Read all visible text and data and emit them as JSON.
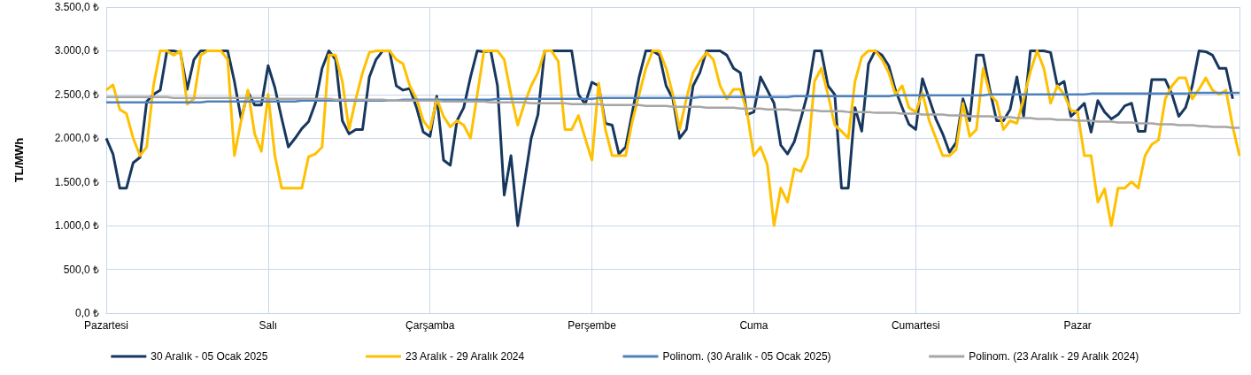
{
  "chart_data": {
    "type": "line",
    "ylabel": "TL/MWh",
    "categories": [
      "Pazartesi",
      null,
      null,
      null,
      null,
      null,
      null,
      null,
      null,
      null,
      null,
      null,
      null,
      null,
      null,
      null,
      null,
      null,
      null,
      null,
      null,
      null,
      null,
      null,
      "Salı",
      null,
      null,
      null,
      null,
      null,
      null,
      null,
      null,
      null,
      null,
      null,
      null,
      null,
      null,
      null,
      null,
      null,
      null,
      null,
      null,
      null,
      null,
      null,
      "Çarşamba",
      null,
      null,
      null,
      null,
      null,
      null,
      null,
      null,
      null,
      null,
      null,
      null,
      null,
      null,
      null,
      null,
      null,
      null,
      null,
      null,
      null,
      null,
      null,
      "Perşembe",
      null,
      null,
      null,
      null,
      null,
      null,
      null,
      null,
      null,
      null,
      null,
      null,
      null,
      null,
      null,
      null,
      null,
      null,
      null,
      null,
      null,
      null,
      null,
      "Cuma",
      null,
      null,
      null,
      null,
      null,
      null,
      null,
      null,
      null,
      null,
      null,
      null,
      null,
      null,
      null,
      null,
      null,
      null,
      null,
      null,
      null,
      null,
      null,
      "Cumartesi",
      null,
      null,
      null,
      null,
      null,
      null,
      null,
      null,
      null,
      null,
      null,
      null,
      null,
      null,
      null,
      null,
      null,
      null,
      null,
      null,
      null,
      null,
      null,
      "Pazar",
      null,
      null,
      null,
      null,
      null,
      null,
      null,
      null,
      null,
      null,
      null,
      null,
      null,
      null,
      null,
      null,
      null,
      null,
      null,
      null,
      null,
      null,
      null,
      null
    ],
    "series": [
      {
        "name": "30 Aralık - 05 Ocak 2025",
        "color": "#17375e",
        "values": [
          2000,
          1820,
          1430,
          1430,
          1720,
          1780,
          2420,
          2500,
          2550,
          3000,
          3000,
          2980,
          2560,
          2900,
          3000,
          3000,
          3000,
          3000,
          3000,
          2650,
          2220,
          2530,
          2380,
          2380,
          2830,
          2580,
          2230,
          1900,
          2000,
          2110,
          2190,
          2400,
          2800,
          3000,
          2900,
          2200,
          2050,
          2100,
          2100,
          2700,
          2900,
          3000,
          3000,
          2600,
          2550,
          2570,
          2350,
          2070,
          2020,
          2480,
          1750,
          1690,
          2200,
          2350,
          2700,
          3000,
          2990,
          3000,
          2600,
          1350,
          1800,
          1000,
          1500,
          2000,
          2270,
          3000,
          3000,
          3000,
          3000,
          3000,
          2500,
          2390,
          2640,
          2600,
          2170,
          2150,
          1820,
          1900,
          2300,
          2700,
          3000,
          3000,
          2950,
          2600,
          2450,
          2000,
          2100,
          2600,
          2750,
          3000,
          3000,
          3000,
          2950,
          2800,
          2750,
          2270,
          2300,
          2700,
          2550,
          2400,
          1920,
          1820,
          1960,
          2230,
          2520,
          3000,
          3000,
          2600,
          2500,
          1430,
          1430,
          2350,
          2080,
          2850,
          3000,
          2950,
          2830,
          2550,
          2350,
          2160,
          2100,
          2680,
          2450,
          2220,
          2050,
          1840,
          1950,
          2450,
          2200,
          2950,
          2950,
          2550,
          2200,
          2200,
          2330,
          2700,
          2250,
          3000,
          3000,
          3000,
          2980,
          2600,
          2650,
          2250,
          2320,
          2400,
          2070,
          2430,
          2300,
          2220,
          2270,
          2370,
          2400,
          2080,
          2080,
          2670,
          2670,
          2670,
          2500,
          2250,
          2350,
          2600,
          3000,
          2990,
          2950,
          2800,
          2800,
          2450,
          null
        ]
      },
      {
        "name": "23 Aralık - 29 Aralık 2024",
        "color": "#ffc000",
        "values": [
          2550,
          2610,
          2330,
          2280,
          2000,
          1800,
          1900,
          2600,
          3000,
          3000,
          2950,
          3000,
          2390,
          2450,
          2950,
          3000,
          3000,
          3000,
          2900,
          1800,
          2200,
          2550,
          2050,
          1850,
          2500,
          1800,
          1430,
          1430,
          1430,
          1430,
          1790,
          1820,
          1900,
          2950,
          2950,
          2650,
          2100,
          2450,
          2750,
          2980,
          3000,
          3000,
          3000,
          2900,
          2850,
          2600,
          2450,
          2200,
          2100,
          2450,
          2250,
          2130,
          2200,
          2150,
          2000,
          2500,
          3000,
          3000,
          3000,
          2900,
          2500,
          2150,
          2400,
          2600,
          2750,
          3000,
          3000,
          2880,
          2100,
          2100,
          2260,
          2000,
          1750,
          2630,
          2100,
          1800,
          1800,
          1800,
          2200,
          2500,
          2800,
          3000,
          3000,
          2800,
          2500,
          2100,
          2450,
          2750,
          2880,
          2980,
          2900,
          2600,
          2450,
          2560,
          2560,
          2300,
          1800,
          1900,
          1700,
          1000,
          1430,
          1270,
          1650,
          1620,
          1800,
          2650,
          2800,
          2500,
          2150,
          2080,
          2000,
          2650,
          2930,
          3000,
          3000,
          2900,
          2750,
          2500,
          2600,
          2350,
          2300,
          2520,
          2200,
          2000,
          1800,
          1800,
          1870,
          2400,
          2020,
          2100,
          2800,
          2500,
          2420,
          2100,
          2200,
          2170,
          2450,
          2760,
          3000,
          2800,
          2400,
          2600,
          2500,
          2320,
          2300,
          1800,
          1800,
          1270,
          1420,
          1000,
          1430,
          1430,
          1500,
          1430,
          1800,
          1930,
          1980,
          2450,
          2600,
          2690,
          2690,
          2450,
          2560,
          2690,
          2550,
          2500,
          2550,
          2130,
          1800
        ]
      },
      {
        "name": "Polinom. (30 Aralık - 05 Ocak 2025)",
        "color": "#4f81bd",
        "values": [
          2410,
          2410,
          2410,
          2410,
          2410,
          2410,
          2410,
          2410,
          2410,
          2410,
          2410,
          2410,
          2410,
          2410,
          2410,
          2420,
          2420,
          2420,
          2420,
          2420,
          2420,
          2420,
          2420,
          2420,
          2420,
          2420,
          2420,
          2420,
          2420,
          2430,
          2430,
          2430,
          2430,
          2430,
          2430,
          2430,
          2430,
          2430,
          2430,
          2430,
          2430,
          2430,
          2430,
          2430,
          2440,
          2440,
          2440,
          2440,
          2440,
          2440,
          2440,
          2440,
          2440,
          2440,
          2440,
          2440,
          2440,
          2440,
          2450,
          2450,
          2450,
          2450,
          2450,
          2450,
          2450,
          2450,
          2450,
          2450,
          2450,
          2450,
          2450,
          2450,
          2450,
          2460,
          2460,
          2460,
          2460,
          2460,
          2460,
          2460,
          2460,
          2460,
          2460,
          2460,
          2460,
          2460,
          2460,
          2460,
          2470,
          2470,
          2470,
          2470,
          2470,
          2470,
          2470,
          2470,
          2470,
          2470,
          2470,
          2470,
          2470,
          2470,
          2480,
          2480,
          2480,
          2480,
          2480,
          2480,
          2480,
          2480,
          2480,
          2480,
          2480,
          2480,
          2480,
          2480,
          2480,
          2490,
          2490,
          2490,
          2490,
          2490,
          2490,
          2490,
          2490,
          2490,
          2490,
          2490,
          2490,
          2490,
          2490,
          2500,
          2500,
          2500,
          2500,
          2500,
          2500,
          2500,
          2500,
          2500,
          2500,
          2500,
          2500,
          2500,
          2500,
          2500,
          2510,
          2510,
          2510,
          2510,
          2510,
          2510,
          2510,
          2510,
          2510,
          2510,
          2510,
          2510,
          2510,
          2510,
          2510,
          2520,
          2520,
          2520,
          2520,
          2520,
          2520,
          2520,
          2520
        ]
      },
      {
        "name": "Polinom. (23 Aralık - 29 Aralık 2024)",
        "color": "#a6a6a6",
        "values": [
          2470,
          2470,
          2470,
          2470,
          2470,
          2470,
          2470,
          2470,
          2470,
          2470,
          2460,
          2460,
          2460,
          2460,
          2460,
          2460,
          2460,
          2460,
          2460,
          2460,
          2460,
          2460,
          2460,
          2460,
          2450,
          2450,
          2450,
          2450,
          2450,
          2450,
          2450,
          2450,
          2450,
          2450,
          2440,
          2440,
          2440,
          2440,
          2440,
          2440,
          2440,
          2440,
          2430,
          2430,
          2430,
          2430,
          2430,
          2430,
          2430,
          2430,
          2420,
          2420,
          2420,
          2420,
          2420,
          2420,
          2420,
          2410,
          2410,
          2410,
          2410,
          2410,
          2410,
          2400,
          2400,
          2400,
          2400,
          2400,
          2400,
          2390,
          2390,
          2390,
          2390,
          2390,
          2380,
          2380,
          2380,
          2380,
          2380,
          2380,
          2370,
          2370,
          2370,
          2370,
          2360,
          2360,
          2360,
          2360,
          2360,
          2350,
          2350,
          2350,
          2350,
          2350,
          2340,
          2340,
          2340,
          2340,
          2330,
          2330,
          2330,
          2330,
          2320,
          2320,
          2320,
          2320,
          2310,
          2310,
          2310,
          2310,
          2300,
          2300,
          2300,
          2300,
          2290,
          2290,
          2290,
          2290,
          2280,
          2280,
          2280,
          2270,
          2270,
          2270,
          2270,
          2260,
          2260,
          2260,
          2250,
          2250,
          2250,
          2250,
          2240,
          2240,
          2240,
          2230,
          2230,
          2230,
          2220,
          2220,
          2220,
          2210,
          2210,
          2210,
          2200,
          2200,
          2200,
          2190,
          2190,
          2190,
          2180,
          2180,
          2180,
          2170,
          2170,
          2170,
          2160,
          2160,
          2160,
          2150,
          2150,
          2150,
          2140,
          2140,
          2130,
          2130,
          2130,
          2120,
          2120
        ]
      }
    ],
    "ylim": [
      0,
      3500
    ],
    "yticks": [
      {
        "value": 0,
        "label": "0,0 ₺"
      },
      {
        "value": 500,
        "label": "500,0 ₺"
      },
      {
        "value": 1000,
        "label": "1.000,0 ₺"
      },
      {
        "value": 1500,
        "label": "1.500,0 ₺"
      },
      {
        "value": 2000,
        "label": "2.000,0 ₺"
      },
      {
        "value": 2500,
        "label": "2.500,0 ₺"
      },
      {
        "value": 3000,
        "label": "3.000,0 ₺"
      },
      {
        "value": 3500,
        "label": "3.500,0 ₺"
      }
    ],
    "grid": true,
    "legend": "bottom",
    "marker": "none",
    "line_style": "solid"
  }
}
